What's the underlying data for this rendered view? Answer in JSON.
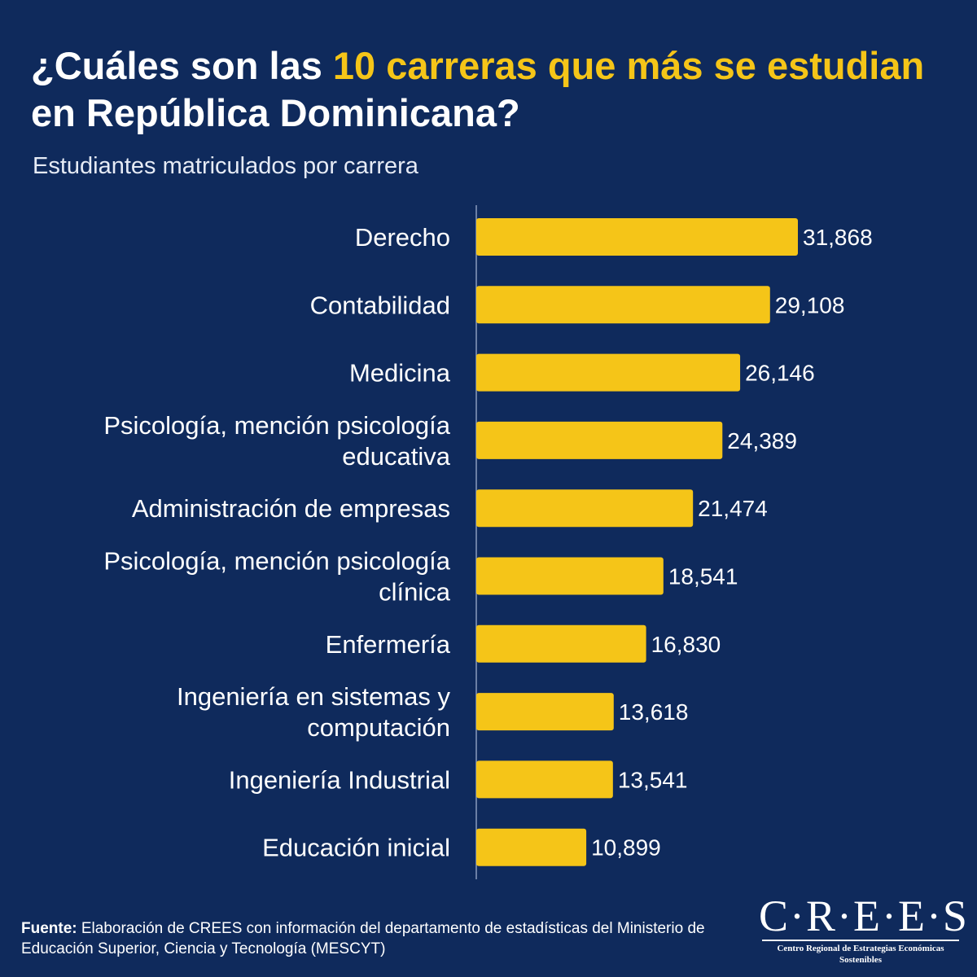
{
  "header": {
    "title_part1": "¿Cuáles son las ",
    "title_highlight": "10 carreras que más se estudian",
    "title_part2": "en República Dominicana?",
    "subtitle": "Estudiantes matriculados por carrera"
  },
  "chart_data": {
    "type": "bar",
    "orientation": "horizontal",
    "categories": [
      [
        "Derecho"
      ],
      [
        "Contabilidad"
      ],
      [
        "Medicina"
      ],
      [
        "Psicología, mención psicología",
        "educativa"
      ],
      [
        "Administración de empresas"
      ],
      [
        "Psicología, mención psicología",
        "clínica"
      ],
      [
        "Enfermería"
      ],
      [
        "Ingeniería en sistemas y",
        "computación"
      ],
      [
        "Ingeniería Industrial"
      ],
      [
        "Educación inicial"
      ]
    ],
    "values": [
      31868,
      29108,
      26146,
      24389,
      21474,
      18541,
      16830,
      13618,
      13541,
      10899
    ],
    "value_labels": [
      "31,868",
      "29,108",
      "26,146",
      "24,389",
      "21,474",
      "18,541",
      "16,830",
      "13,618",
      "13,541",
      "10,899"
    ],
    "bar_color": "#f5c518",
    "background_color": "#0f2a5c",
    "axis_color": "#8a9bbd"
  },
  "footer": {
    "source_label": "Fuente:",
    "source_text": " Elaboración de CREES con información del departamento de estadísticas del Ministerio de Educación Superior, Ciencia y Tecnología (MESCYT)"
  },
  "logo": {
    "name": "C·R·E·E·S",
    "subtitle": "Centro Regional de Estrategias Económicas Sostenibles"
  }
}
